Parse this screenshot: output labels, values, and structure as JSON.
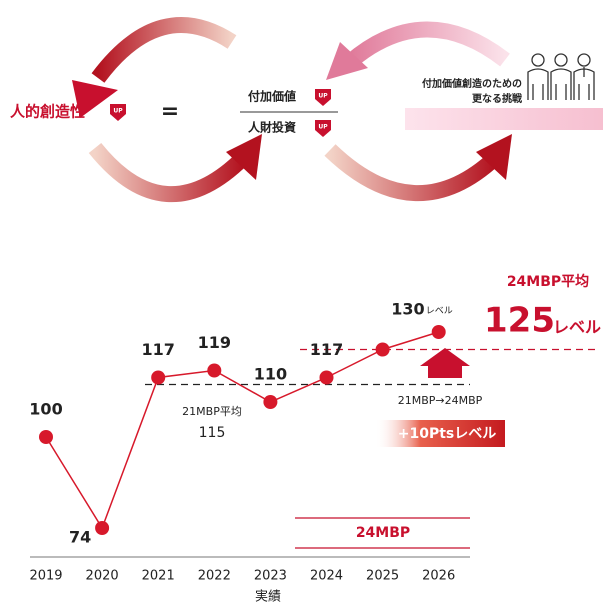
{
  "diagram": {
    "left_label": "人的創造性",
    "badge": "UP",
    "equals": "=",
    "numerator": "付加価値",
    "denominator": "人財投資",
    "challenge": [
      "付加価値創造のための",
      "更なる挑戦"
    ]
  },
  "chart_data": {
    "type": "line",
    "color": "#d7192b",
    "categories": [
      "2019",
      "2020",
      "2021",
      "2022",
      "2023",
      "2024",
      "2025",
      "2026"
    ],
    "values": [
      100,
      74,
      117,
      119,
      110,
      117,
      125,
      130
    ],
    "labeled": [
      true,
      true,
      true,
      true,
      true,
      true,
      false,
      true
    ],
    "x_label": "実績",
    "level_suffix": "レベル",
    "reference_lines": [
      {
        "label": "21MBP平均",
        "value": 115,
        "color": "#222222"
      },
      {
        "label": "24MBP平均",
        "value": 125,
        "color": "#c8102e"
      }
    ],
    "annotations": {
      "transition": "21MBP→24MBP",
      "increase": "+10Ptsレベル",
      "period": "24MBP"
    }
  }
}
